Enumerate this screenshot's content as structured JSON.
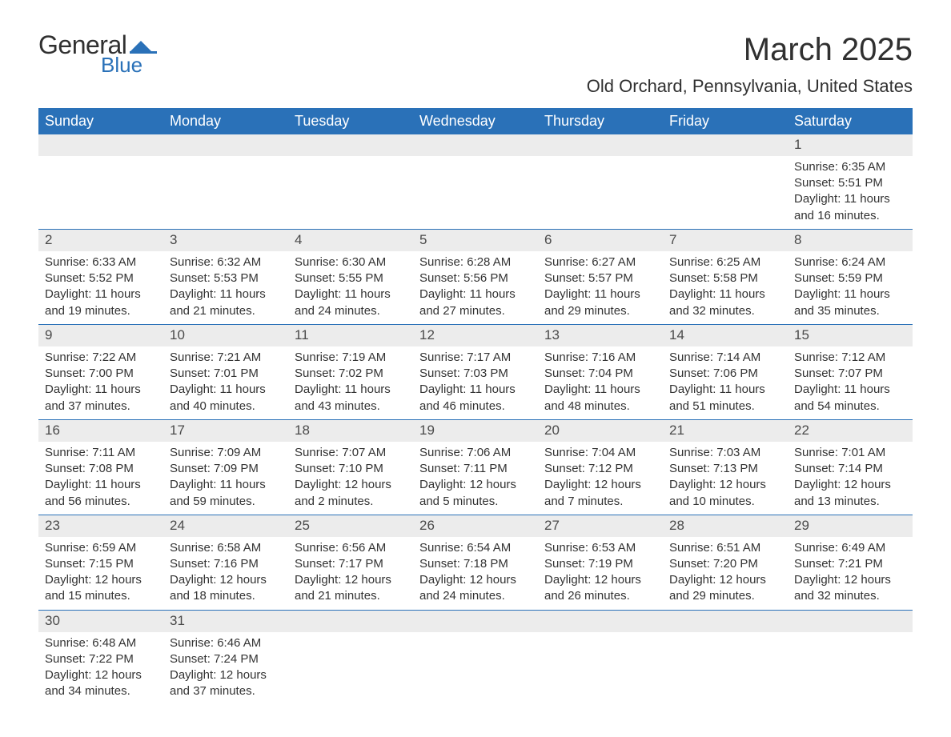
{
  "logo": {
    "word1": "General",
    "word2": "Blue",
    "flag_color": "#2a71b8",
    "text_color": "#303030"
  },
  "title": "March 2025",
  "location": "Old Orchard, Pennsylvania, United States",
  "colors": {
    "header_bg": "#2a71b8",
    "header_text": "#ffffff",
    "daynum_bg": "#ececec",
    "row_border": "#2a71b8",
    "body_text": "#333333",
    "page_bg": "#ffffff"
  },
  "typography": {
    "month_title_fontsize": 40,
    "location_fontsize": 22,
    "dayheader_fontsize": 18,
    "cell_fontsize": 15,
    "daynum_fontsize": 17
  },
  "day_headers": [
    "Sunday",
    "Monday",
    "Tuesday",
    "Wednesday",
    "Thursday",
    "Friday",
    "Saturday"
  ],
  "weeks": [
    [
      null,
      null,
      null,
      null,
      null,
      null,
      {
        "n": "1",
        "sunrise": "6:35 AM",
        "sunset": "5:51 PM",
        "dl1": "11 hours",
        "dl2": "and 16 minutes."
      }
    ],
    [
      {
        "n": "2",
        "sunrise": "6:33 AM",
        "sunset": "5:52 PM",
        "dl1": "11 hours",
        "dl2": "and 19 minutes."
      },
      {
        "n": "3",
        "sunrise": "6:32 AM",
        "sunset": "5:53 PM",
        "dl1": "11 hours",
        "dl2": "and 21 minutes."
      },
      {
        "n": "4",
        "sunrise": "6:30 AM",
        "sunset": "5:55 PM",
        "dl1": "11 hours",
        "dl2": "and 24 minutes."
      },
      {
        "n": "5",
        "sunrise": "6:28 AM",
        "sunset": "5:56 PM",
        "dl1": "11 hours",
        "dl2": "and 27 minutes."
      },
      {
        "n": "6",
        "sunrise": "6:27 AM",
        "sunset": "5:57 PM",
        "dl1": "11 hours",
        "dl2": "and 29 minutes."
      },
      {
        "n": "7",
        "sunrise": "6:25 AM",
        "sunset": "5:58 PM",
        "dl1": "11 hours",
        "dl2": "and 32 minutes."
      },
      {
        "n": "8",
        "sunrise": "6:24 AM",
        "sunset": "5:59 PM",
        "dl1": "11 hours",
        "dl2": "and 35 minutes."
      }
    ],
    [
      {
        "n": "9",
        "sunrise": "7:22 AM",
        "sunset": "7:00 PM",
        "dl1": "11 hours",
        "dl2": "and 37 minutes."
      },
      {
        "n": "10",
        "sunrise": "7:21 AM",
        "sunset": "7:01 PM",
        "dl1": "11 hours",
        "dl2": "and 40 minutes."
      },
      {
        "n": "11",
        "sunrise": "7:19 AM",
        "sunset": "7:02 PM",
        "dl1": "11 hours",
        "dl2": "and 43 minutes."
      },
      {
        "n": "12",
        "sunrise": "7:17 AM",
        "sunset": "7:03 PM",
        "dl1": "11 hours",
        "dl2": "and 46 minutes."
      },
      {
        "n": "13",
        "sunrise": "7:16 AM",
        "sunset": "7:04 PM",
        "dl1": "11 hours",
        "dl2": "and 48 minutes."
      },
      {
        "n": "14",
        "sunrise": "7:14 AM",
        "sunset": "7:06 PM",
        "dl1": "11 hours",
        "dl2": "and 51 minutes."
      },
      {
        "n": "15",
        "sunrise": "7:12 AM",
        "sunset": "7:07 PM",
        "dl1": "11 hours",
        "dl2": "and 54 minutes."
      }
    ],
    [
      {
        "n": "16",
        "sunrise": "7:11 AM",
        "sunset": "7:08 PM",
        "dl1": "11 hours",
        "dl2": "and 56 minutes."
      },
      {
        "n": "17",
        "sunrise": "7:09 AM",
        "sunset": "7:09 PM",
        "dl1": "11 hours",
        "dl2": "and 59 minutes."
      },
      {
        "n": "18",
        "sunrise": "7:07 AM",
        "sunset": "7:10 PM",
        "dl1": "12 hours",
        "dl2": "and 2 minutes."
      },
      {
        "n": "19",
        "sunrise": "7:06 AM",
        "sunset": "7:11 PM",
        "dl1": "12 hours",
        "dl2": "and 5 minutes."
      },
      {
        "n": "20",
        "sunrise": "7:04 AM",
        "sunset": "7:12 PM",
        "dl1": "12 hours",
        "dl2": "and 7 minutes."
      },
      {
        "n": "21",
        "sunrise": "7:03 AM",
        "sunset": "7:13 PM",
        "dl1": "12 hours",
        "dl2": "and 10 minutes."
      },
      {
        "n": "22",
        "sunrise": "7:01 AM",
        "sunset": "7:14 PM",
        "dl1": "12 hours",
        "dl2": "and 13 minutes."
      }
    ],
    [
      {
        "n": "23",
        "sunrise": "6:59 AM",
        "sunset": "7:15 PM",
        "dl1": "12 hours",
        "dl2": "and 15 minutes."
      },
      {
        "n": "24",
        "sunrise": "6:58 AM",
        "sunset": "7:16 PM",
        "dl1": "12 hours",
        "dl2": "and 18 minutes."
      },
      {
        "n": "25",
        "sunrise": "6:56 AM",
        "sunset": "7:17 PM",
        "dl1": "12 hours",
        "dl2": "and 21 minutes."
      },
      {
        "n": "26",
        "sunrise": "6:54 AM",
        "sunset": "7:18 PM",
        "dl1": "12 hours",
        "dl2": "and 24 minutes."
      },
      {
        "n": "27",
        "sunrise": "6:53 AM",
        "sunset": "7:19 PM",
        "dl1": "12 hours",
        "dl2": "and 26 minutes."
      },
      {
        "n": "28",
        "sunrise": "6:51 AM",
        "sunset": "7:20 PM",
        "dl1": "12 hours",
        "dl2": "and 29 minutes."
      },
      {
        "n": "29",
        "sunrise": "6:49 AM",
        "sunset": "7:21 PM",
        "dl1": "12 hours",
        "dl2": "and 32 minutes."
      }
    ],
    [
      {
        "n": "30",
        "sunrise": "6:48 AM",
        "sunset": "7:22 PM",
        "dl1": "12 hours",
        "dl2": "and 34 minutes."
      },
      {
        "n": "31",
        "sunrise": "6:46 AM",
        "sunset": "7:24 PM",
        "dl1": "12 hours",
        "dl2": "and 37 minutes."
      },
      null,
      null,
      null,
      null,
      null
    ]
  ],
  "labels": {
    "sunrise": "Sunrise: ",
    "sunset": "Sunset: ",
    "daylight": "Daylight: "
  }
}
